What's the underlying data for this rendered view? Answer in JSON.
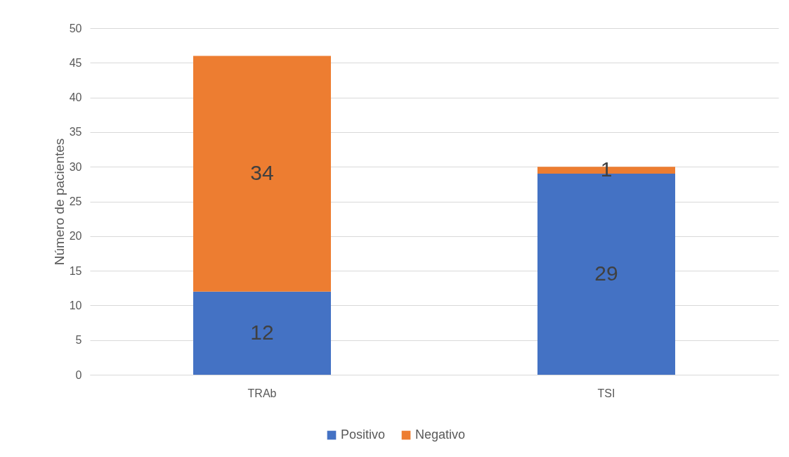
{
  "chart_data": {
    "type": "bar",
    "stacked": true,
    "ylabel": "Número de pacientes",
    "categories": [
      "TRAb",
      "TSI"
    ],
    "series": [
      {
        "name": "Positivo",
        "color": "#4472c4",
        "values": [
          12,
          29
        ]
      },
      {
        "name": "Negativo",
        "color": "#ed7d31",
        "values": [
          34,
          1
        ]
      }
    ],
    "ylim": [
      0,
      50
    ],
    "yticks": [
      0,
      5,
      10,
      15,
      20,
      25,
      30,
      35,
      40,
      45,
      50
    ],
    "grid": "y",
    "legend": "bottom",
    "data_labels": true
  }
}
